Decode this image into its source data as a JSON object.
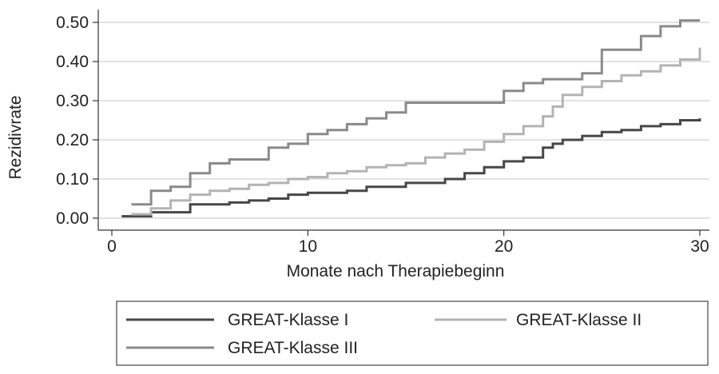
{
  "chart_data": {
    "type": "line",
    "step": true,
    "title": "",
    "xlabel": "Monate nach Therapiebeginn",
    "ylabel": "Rezidivrate",
    "xlim": [
      0,
      30
    ],
    "ylim": [
      0,
      0.5
    ],
    "x_ticks": [
      0,
      10,
      20,
      30
    ],
    "y_ticks": [
      "0.00",
      "0.10",
      "0.20",
      "0.30",
      "0.40",
      "0.50"
    ],
    "grid": true,
    "legend_position": "bottom",
    "series": [
      {
        "name": "GREAT-Klasse I",
        "color": "#474747",
        "points": [
          [
            0.5,
            0.005
          ],
          [
            1,
            0.005
          ],
          [
            2,
            0.015
          ],
          [
            4,
            0.035
          ],
          [
            6,
            0.04
          ],
          [
            7,
            0.045
          ],
          [
            8,
            0.05
          ],
          [
            9,
            0.06
          ],
          [
            10,
            0.065
          ],
          [
            12,
            0.07
          ],
          [
            13,
            0.08
          ],
          [
            15,
            0.09
          ],
          [
            16,
            0.09
          ],
          [
            17,
            0.1
          ],
          [
            18,
            0.115
          ],
          [
            19,
            0.13
          ],
          [
            20,
            0.145
          ],
          [
            21,
            0.155
          ],
          [
            22,
            0.18
          ],
          [
            22.5,
            0.19
          ],
          [
            23,
            0.2
          ],
          [
            24,
            0.21
          ],
          [
            25,
            0.22
          ],
          [
            26,
            0.225
          ],
          [
            27,
            0.235
          ],
          [
            28,
            0.24
          ],
          [
            29,
            0.25
          ],
          [
            30,
            0.255
          ]
        ]
      },
      {
        "name": "GREAT-Klasse II",
        "color": "#b3b3b3",
        "points": [
          [
            1,
            0.01
          ],
          [
            2,
            0.025
          ],
          [
            3,
            0.045
          ],
          [
            4,
            0.06
          ],
          [
            5,
            0.07
          ],
          [
            6,
            0.075
          ],
          [
            7,
            0.085
          ],
          [
            8,
            0.09
          ],
          [
            9,
            0.1
          ],
          [
            10,
            0.105
          ],
          [
            11,
            0.115
          ],
          [
            12,
            0.12
          ],
          [
            13,
            0.13
          ],
          [
            14,
            0.135
          ],
          [
            15,
            0.14
          ],
          [
            16,
            0.155
          ],
          [
            17,
            0.165
          ],
          [
            18,
            0.175
          ],
          [
            19,
            0.195
          ],
          [
            20,
            0.215
          ],
          [
            21,
            0.235
          ],
          [
            22,
            0.26
          ],
          [
            22.5,
            0.285
          ],
          [
            23,
            0.315
          ],
          [
            24,
            0.335
          ],
          [
            25,
            0.35
          ],
          [
            26,
            0.365
          ],
          [
            27,
            0.375
          ],
          [
            28,
            0.39
          ],
          [
            29,
            0.405
          ],
          [
            30,
            0.415
          ],
          [
            30,
            0.435
          ]
        ]
      },
      {
        "name": "GREAT-Klasse III",
        "color": "#8a8a8a",
        "points": [
          [
            1,
            0.035
          ],
          [
            2,
            0.07
          ],
          [
            3,
            0.08
          ],
          [
            4,
            0.115
          ],
          [
            5,
            0.14
          ],
          [
            6,
            0.15
          ],
          [
            8,
            0.18
          ],
          [
            9,
            0.19
          ],
          [
            10,
            0.215
          ],
          [
            11,
            0.225
          ],
          [
            12,
            0.24
          ],
          [
            13,
            0.255
          ],
          [
            14,
            0.27
          ],
          [
            15,
            0.295
          ],
          [
            20,
            0.325
          ],
          [
            21,
            0.345
          ],
          [
            22,
            0.355
          ],
          [
            24,
            0.37
          ],
          [
            25,
            0.43
          ],
          [
            27,
            0.465
          ],
          [
            28,
            0.49
          ],
          [
            29,
            0.505
          ],
          [
            30,
            0.505
          ]
        ]
      }
    ]
  }
}
